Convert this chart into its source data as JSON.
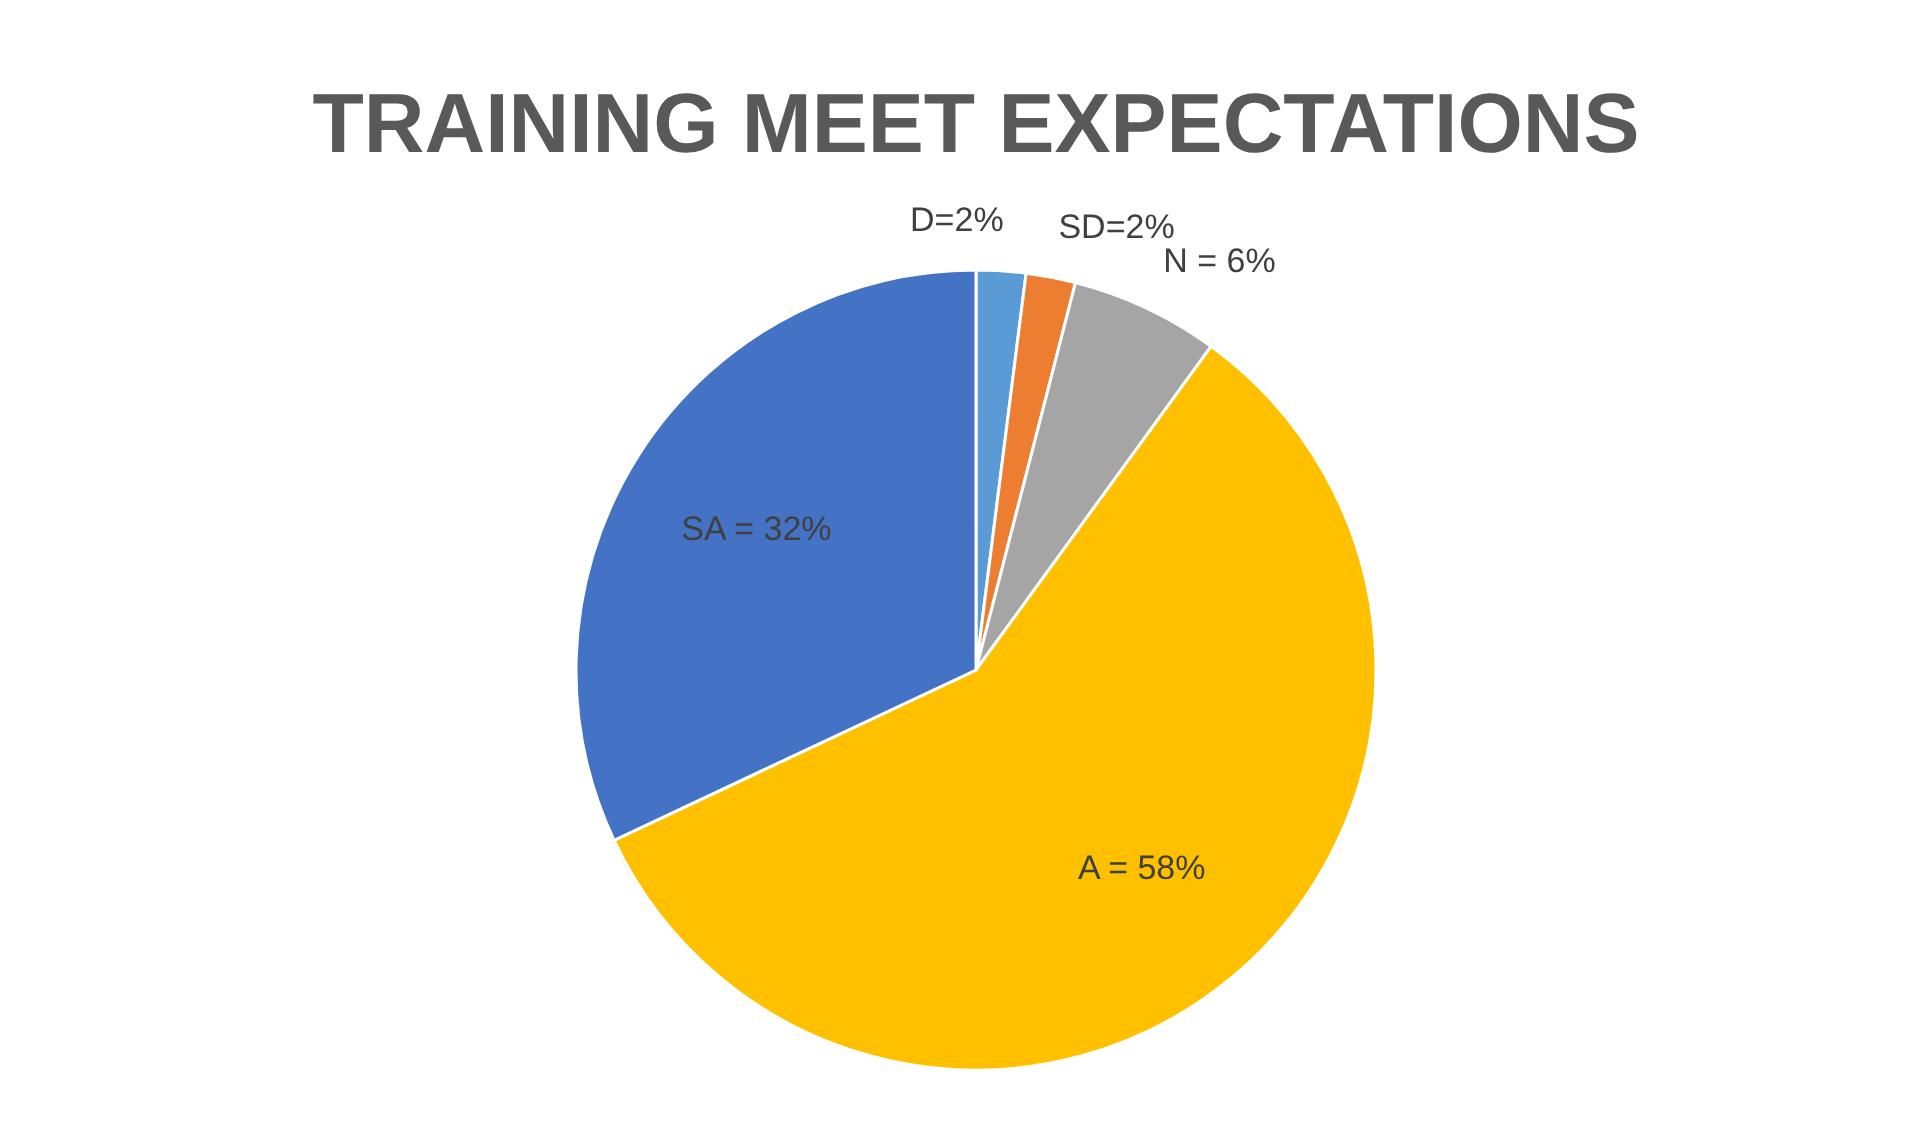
{
  "chart_data": {
    "type": "pie",
    "title": "TRAINING MEET EXPECTATIONS",
    "categories": [
      "D=2%",
      "SD=2%",
      "N = 6%",
      "A = 58%",
      "SA = 32%"
    ],
    "values": [
      2,
      2,
      6,
      58,
      32
    ],
    "colors": [
      "#5b9bd5",
      "#ed7d31",
      "#a5a5a5",
      "#ffc000",
      "#4472c4"
    ]
  }
}
